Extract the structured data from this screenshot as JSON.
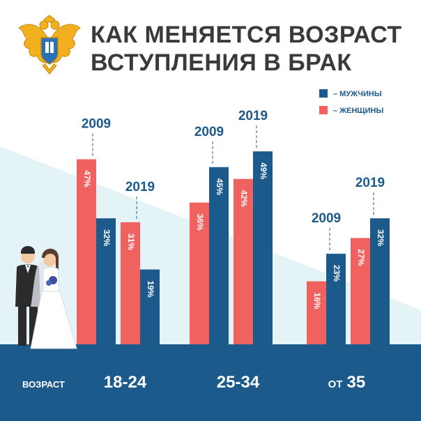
{
  "title_line1": "КАК МЕНЯЕТСЯ ВОЗРАСТ",
  "title_line2": "ВСТУПЛЕНИЯ В БРАК",
  "colors": {
    "men": "#1d5a8c",
    "women": "#f0625f",
    "bg_band": "#e4f3f6",
    "footer": "#1d5a8c"
  },
  "icons": [
    "emblem-icon",
    "bride-groom-illustration"
  ],
  "chart_data": {
    "type": "bar",
    "ylim": [
      0,
      55
    ],
    "legend": {
      "position": "top-right",
      "items": [
        {
          "label": "– МУЖЧИНЫ",
          "color": "#1d5a8c"
        },
        {
          "label": "– ЖЕНЩИНЫ",
          "color": "#f0625f"
        }
      ]
    },
    "axis_caption": "ВОЗРАСТ",
    "groups": [
      {
        "label": "18-24",
        "label_prefix": "",
        "years": [
          {
            "year": "2009",
            "women": 47,
            "men": 32,
            "women_label": "47%",
            "men_label": "32%"
          },
          {
            "year": "2019",
            "women": 31,
            "men": 19,
            "women_label": "31%",
            "men_label": "19%"
          }
        ]
      },
      {
        "label": "25-34",
        "label_prefix": "",
        "years": [
          {
            "year": "2009",
            "women": 36,
            "men": 45,
            "women_label": "36%",
            "men_label": "45%"
          },
          {
            "year": "2019",
            "women": 42,
            "men": 49,
            "women_label": "42%",
            "men_label": "49%"
          }
        ]
      },
      {
        "label": "35",
        "label_prefix": "ОТ",
        "years": [
          {
            "year": "2009",
            "women": 16,
            "men": 23,
            "women_label": "16%",
            "men_label": "23%"
          },
          {
            "year": "2019",
            "women": 27,
            "men": 32,
            "women_label": "27%",
            "men_label": "32%"
          }
        ]
      }
    ]
  }
}
